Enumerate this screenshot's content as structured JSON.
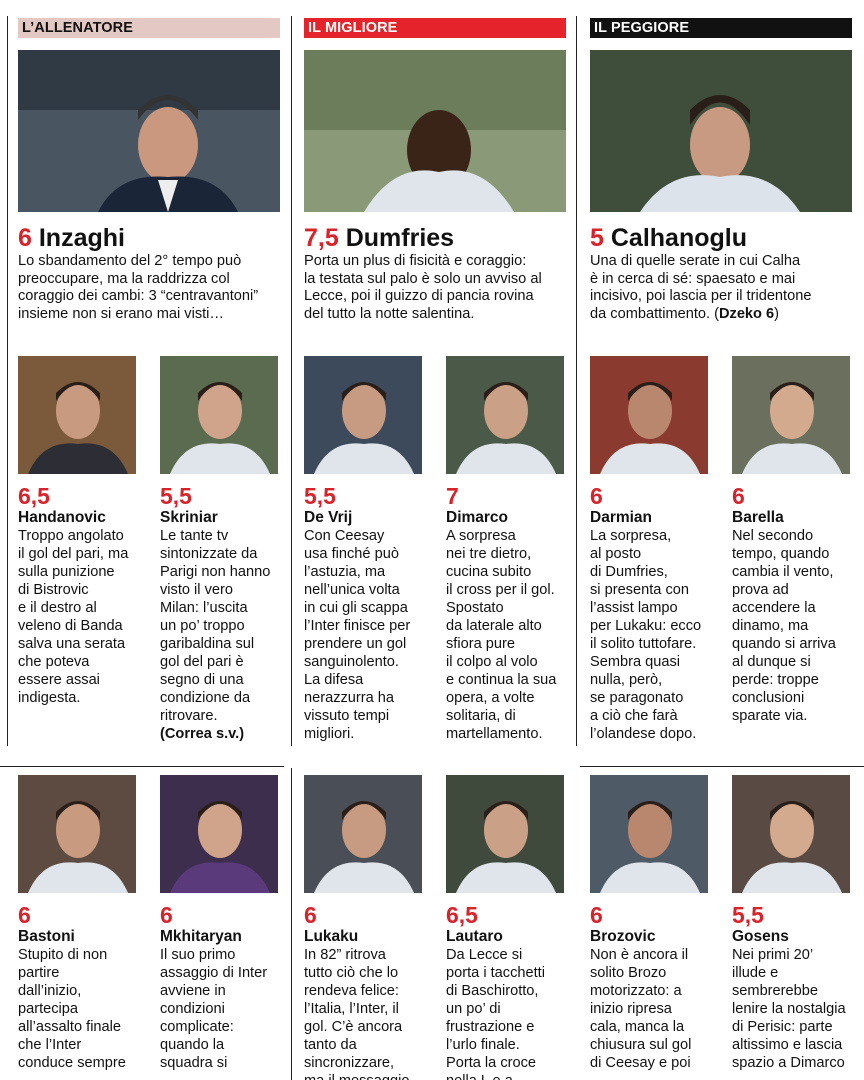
{
  "columns": [
    {
      "banner": "L’ALLENATORE",
      "grade": "6",
      "name": "Inzaghi",
      "text": [
        "Lo sbandamento del 2° tempo può",
        "preoccupare, ma la raddrizza col",
        "coraggio dei cambi: 3 “centravantoni”",
        "insieme non si erano mai visti…"
      ]
    },
    {
      "banner": "IL MIGLIORE",
      "grade": "7,5",
      "name": "Dumfries",
      "text": [
        "Porta un plus di fisicità e coraggio:",
        "la testata sul palo è solo un avviso al",
        "Lecce, poi il guizzo di pancia rovina",
        "del tutto la notte salentina."
      ]
    },
    {
      "banner": "IL PEGGIORE",
      "grade": "5",
      "name": "Calhanoglu",
      "text": [
        "Una di quelle serate in cui Calha",
        "è in cerca di sé: spaesato e mai",
        "incisivo, poi lascia per il tridentone"
      ],
      "last_line": "da combattimento. (",
      "last_bold": "Dzeko 6",
      "last_close": ")"
    }
  ],
  "players_top": [
    {
      "grade": "6,5",
      "name": "Handanovic",
      "lines": [
        "Troppo angolato",
        "il gol del pari, ma",
        "sulla punizione",
        "di Bistrovic",
        "e il destro al",
        "veleno di Banda",
        "salva una serata",
        "che poteva",
        "essere assai",
        "indigesta."
      ]
    },
    {
      "grade": "5,5",
      "name": "Skriniar",
      "lines": [
        "Le tante tv",
        "sintonizzate da",
        "Parigi non hanno",
        "visto il vero",
        "Milan: l’uscita",
        "un po’ troppo",
        "garibaldina sul",
        "gol del pari è",
        "segno di una",
        "condizione da",
        "ritrovare."
      ],
      "sub": "(Correa s.v.)"
    },
    {
      "grade": "5,5",
      "name": "De Vrij",
      "lines": [
        "Con Ceesay",
        "usa finché può",
        "l’astuzia, ma",
        "nell’unica volta",
        "in cui gli scappa",
        "l’Inter finisce per",
        "prendere un gol",
        "sanguinolento.",
        "La difesa",
        "nerazzurra ha",
        "vissuto tempi",
        "migliori."
      ]
    },
    {
      "grade": "7",
      "name": "Dimarco",
      "lines": [
        "A sorpresa",
        "nei tre dietro,",
        "cucina subito",
        "il cross per il gol.",
        "Spostato",
        "da laterale alto",
        "sfiora pure",
        "il colpo al volo",
        "e continua la sua",
        "opera, a volte",
        "solitaria, di",
        "martellamento."
      ]
    },
    {
      "grade": "6",
      "name": "Darmian",
      "lines": [
        "La sorpresa,",
        "al posto",
        "di Dumfries,",
        "si presenta con",
        "l’assist lampo",
        "per Lukaku: ecco",
        "il solito tuttofare.",
        "Sembra quasi",
        "nulla, però,",
        "se paragonato",
        "a ciò che farà",
        "l’olandese dopo."
      ]
    },
    {
      "grade": "6",
      "name": "Barella",
      "lines": [
        "Nel secondo",
        "tempo, quando",
        "cambia il vento,",
        "prova ad",
        "accendere la",
        "dinamo, ma",
        "quando si arriva",
        "al dunque si",
        "perde: troppe",
        "conclusioni",
        "sparate via."
      ]
    }
  ],
  "players_bottom": [
    {
      "grade": "6",
      "name": "Bastoni",
      "lines": [
        "Stupito di non",
        "partire",
        "dall’inizio,",
        "partecipa",
        "all’assalto finale",
        "che l’Inter",
        "conduce sempre"
      ]
    },
    {
      "grade": "6",
      "name": "Mkhitaryan",
      "lines": [
        "Il suo primo",
        "assaggio di Inter",
        "avviene in",
        "condizioni",
        "complicate:",
        "quando la",
        "squadra si"
      ]
    },
    {
      "grade": "6",
      "name": "Lukaku",
      "lines": [
        "In 82” ritrova",
        "tutto ciò che lo",
        "rendeva felice:",
        "l’Italia, l’Inter, il",
        "gol. C’è ancora",
        "tanto da",
        "sincronizzare,",
        "ma il messaggio"
      ]
    },
    {
      "grade": "6,5",
      "name": "Lautaro",
      "lines": [
        "Da Lecce si",
        "porta i tacchetti",
        "di Baschirotto,",
        "un po’ di",
        "frustrazione e",
        "l’urlo finale.",
        "Porta la croce",
        "nella L e a"
      ]
    },
    {
      "grade": "6",
      "name": "Brozovic",
      "lines": [
        "Non è ancora il",
        "solito Brozo",
        "motorizzato: a",
        "inizio ripresa",
        "cala, manca la",
        "chiusura sul gol",
        "di Ceesay e poi"
      ]
    },
    {
      "grade": "5,5",
      "name": "Gosens",
      "lines": [
        "Nei primi 20’",
        "illude e",
        "sembrerebbe",
        "lenire la nostalgia",
        "di Perisic: parte",
        "altissimo e lascia",
        "spazio a Dimarco"
      ]
    }
  ],
  "icons": [
    "coach-photo",
    "player-photo"
  ]
}
